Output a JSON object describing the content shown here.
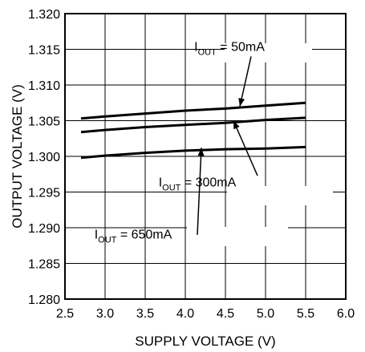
{
  "chart_data": {
    "type": "line",
    "title": "",
    "xlabel": "SUPPLY VOLTAGE (V)",
    "ylabel": "OUTPUT VOLTAGE (V)",
    "xlim": [
      2.5,
      6.0
    ],
    "ylim": [
      1.28,
      1.32
    ],
    "xticks": [
      2.5,
      3.0,
      3.5,
      4.0,
      4.5,
      5.0,
      5.5,
      6.0
    ],
    "xtick_labels": [
      "2.5",
      "3.0",
      "3.5",
      "4.0",
      "4.5",
      "5.0",
      "5.5",
      "6.0"
    ],
    "yticks": [
      1.28,
      1.285,
      1.29,
      1.295,
      1.3,
      1.305,
      1.31,
      1.315,
      1.32
    ],
    "ytick_labels": [
      "1.280",
      "1.285",
      "1.290",
      "1.295",
      "1.300",
      "1.305",
      "1.310",
      "1.315",
      "1.320"
    ],
    "grid": true,
    "legend": "none",
    "series": [
      {
        "label": {
          "main": "I",
          "sub": "OUT",
          "rest": " = 50mA"
        },
        "x": [
          2.7,
          3.0,
          3.5,
          4.0,
          4.5,
          5.0,
          5.5
        ],
        "y": [
          1.3053,
          1.3056,
          1.306,
          1.3064,
          1.3067,
          1.3071,
          1.3075
        ]
      },
      {
        "label": {
          "main": "I",
          "sub": "OUT",
          "rest": " = 300mA"
        },
        "x": [
          2.7,
          3.0,
          3.5,
          4.0,
          4.5,
          5.0,
          5.5
        ],
        "y": [
          1.3034,
          1.3037,
          1.3041,
          1.3044,
          1.3047,
          1.3051,
          1.3054
        ]
      },
      {
        "label": {
          "main": "I",
          "sub": "OUT",
          "rest": " = 650mA"
        },
        "x": [
          2.7,
          3.0,
          3.5,
          4.0,
          4.5,
          5.0,
          5.5
        ],
        "y": [
          1.2998,
          1.3001,
          1.3005,
          1.3008,
          1.301,
          1.3011,
          1.3013
        ]
      }
    ],
    "line_color": "#000000"
  }
}
